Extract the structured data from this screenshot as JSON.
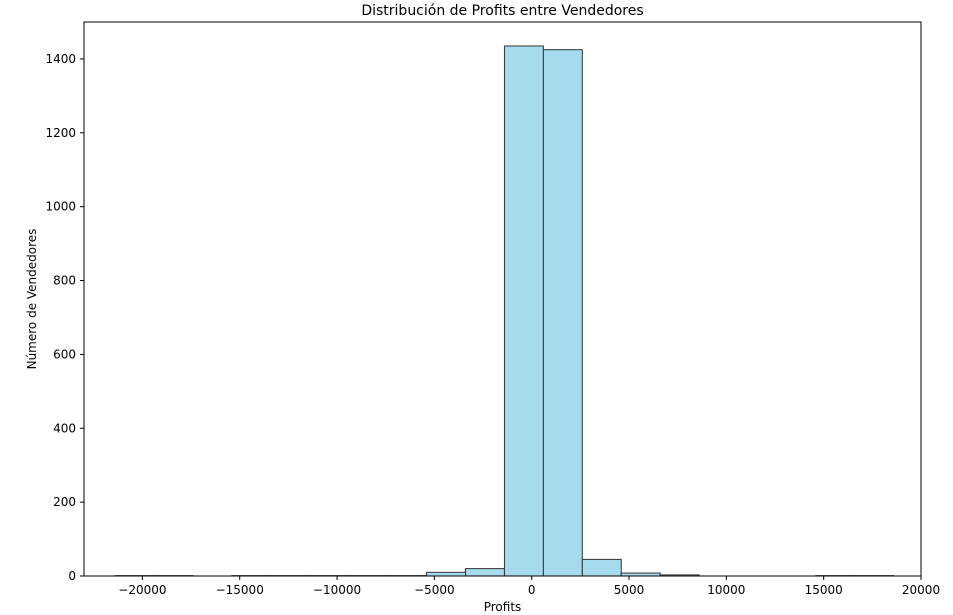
{
  "chart_data": {
    "type": "bar",
    "subtype": "histogram",
    "title": "Distribución de Profits entre Vendedores",
    "xlabel": "Profits",
    "ylabel": "Número de Vendedores",
    "xlim": [
      -23000,
      20000
    ],
    "ylim": [
      0,
      1500
    ],
    "xticks": [
      -20000,
      -15000,
      -10000,
      -5000,
      0,
      5000,
      10000,
      15000,
      20000
    ],
    "yticks": [
      0,
      200,
      400,
      600,
      800,
      1000,
      1200,
      1400
    ],
    "grid": false,
    "legend": "none",
    "bar_color": "#a6dbee",
    "edge_color": "#333333",
    "bins": [
      {
        "start": -21400,
        "end": -19400,
        "count": 1
      },
      {
        "start": -19400,
        "end": -17400,
        "count": 1
      },
      {
        "start": -17400,
        "end": -15400,
        "count": 0
      },
      {
        "start": -15400,
        "end": -13400,
        "count": 1
      },
      {
        "start": -13400,
        "end": -11400,
        "count": 1
      },
      {
        "start": -11400,
        "end": -9400,
        "count": 1
      },
      {
        "start": -9400,
        "end": -7400,
        "count": 1
      },
      {
        "start": -7400,
        "end": -5400,
        "count": 1
      },
      {
        "start": -5400,
        "end": -3400,
        "count": 10
      },
      {
        "start": -3400,
        "end": -1400,
        "count": 20
      },
      {
        "start": -1400,
        "end": 600,
        "count": 1435
      },
      {
        "start": 600,
        "end": 2600,
        "count": 1425
      },
      {
        "start": 2600,
        "end": 4600,
        "count": 45
      },
      {
        "start": 4600,
        "end": 6600,
        "count": 8
      },
      {
        "start": 6600,
        "end": 8600,
        "count": 3
      },
      {
        "start": 8600,
        "end": 10600,
        "count": 0
      },
      {
        "start": 10600,
        "end": 12600,
        "count": 0
      },
      {
        "start": 12600,
        "end": 14600,
        "count": 0
      },
      {
        "start": 14600,
        "end": 16600,
        "count": 1
      },
      {
        "start": 16600,
        "end": 18600,
        "count": 1
      }
    ]
  }
}
